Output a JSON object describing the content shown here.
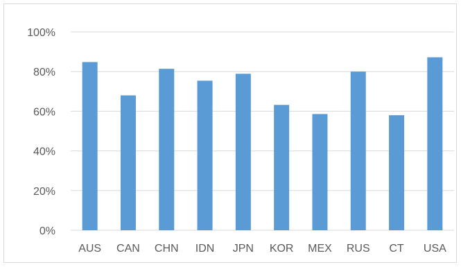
{
  "chart_data": {
    "type": "bar",
    "title": "",
    "xlabel": "",
    "ylabel": "",
    "categories": [
      "AUS",
      "CAN",
      "CHN",
      "IDN",
      "JPN",
      "KOR",
      "MEX",
      "RUS",
      "CT",
      "USA"
    ],
    "values": [
      0.848,
      0.68,
      0.814,
      0.754,
      0.789,
      0.632,
      0.586,
      0.8,
      0.58,
      0.872
    ],
    "ylim": [
      0,
      1
    ],
    "yticks": [
      0,
      0.2,
      0.4,
      0.6,
      0.8,
      1.0
    ],
    "ytick_labels": [
      "0%",
      "20%",
      "40%",
      "60%",
      "80%",
      "100%"
    ],
    "grid": true,
    "legend": "none",
    "colors": {
      "bar": "#5b9bd5",
      "grid": "#d9d9d9",
      "axis_text": "#595959",
      "border": "#d9d9d9"
    }
  }
}
